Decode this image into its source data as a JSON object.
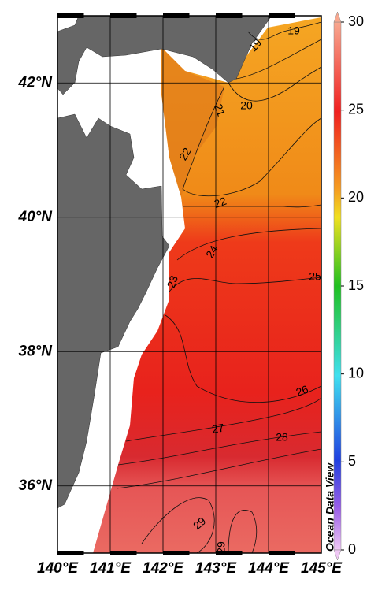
{
  "map": {
    "xlim": [
      140,
      145
    ],
    "ylim": [
      35,
      43
    ],
    "xticks": [
      {
        "value": 140,
        "label": "140°E"
      },
      {
        "value": 141,
        "label": "141°E"
      },
      {
        "value": 142,
        "label": "142°E"
      },
      {
        "value": 143,
        "label": "143°E"
      },
      {
        "value": 144,
        "label": "144°E"
      },
      {
        "value": 145,
        "label": "145°E"
      }
    ],
    "yticks": [
      {
        "value": 36,
        "label": "36°N"
      },
      {
        "value": 38,
        "label": "38°N"
      },
      {
        "value": 40,
        "label": "40°N"
      },
      {
        "value": 42,
        "label": "42°N"
      }
    ],
    "contour_labels": [
      19,
      19,
      20,
      21,
      22,
      22,
      24,
      23,
      25,
      26,
      27,
      28,
      29,
      29
    ],
    "credit": "Ocean Data View"
  },
  "colorbar": {
    "lim": [
      0,
      30
    ],
    "ticks": [
      0,
      5,
      10,
      15,
      20,
      25,
      30
    ]
  }
}
